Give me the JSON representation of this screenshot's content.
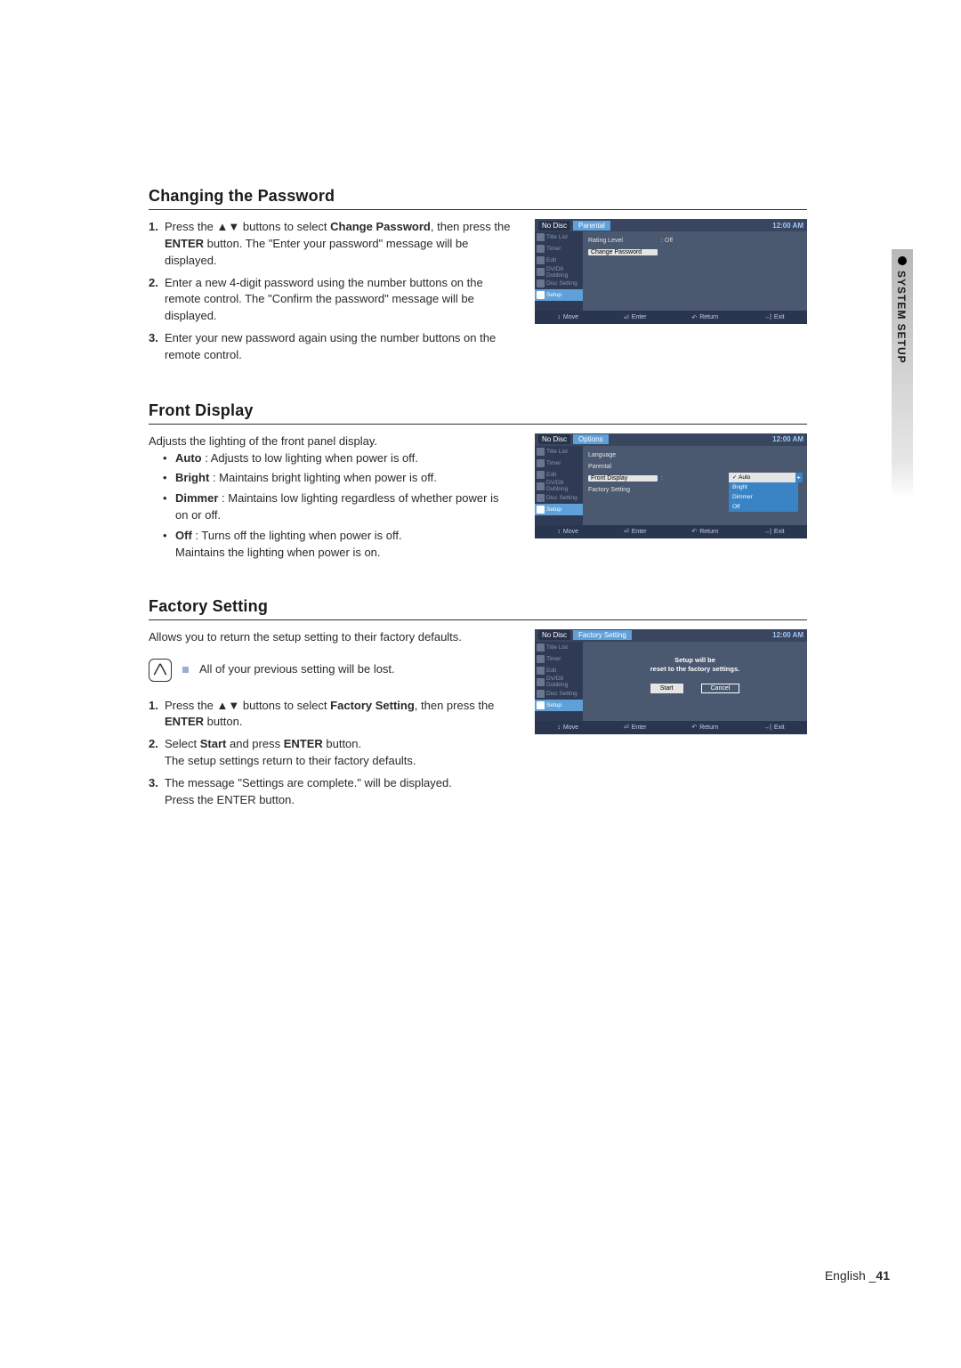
{
  "sideTab": "SYSTEM SETUP",
  "footer": {
    "lang": "English",
    "page": "41"
  },
  "sections": {
    "changePassword": {
      "title": "Changing the Password",
      "steps": [
        {
          "num": "1.",
          "pre": "Press the ",
          "arrows": "▲▼",
          "mid": " buttons to select ",
          "bold": "Change Password",
          "post": ", then press the ",
          "bold2": "ENTER",
          "tail": " button.  The \"Enter your password\" message will be displayed."
        },
        {
          "num": "2.",
          "text": "Enter a new 4-digit password using the number buttons on the remote control. The \"Confirm the password\" message will be displayed."
        },
        {
          "num": "3.",
          "text": "Enter your new password again using the number buttons on the remote control."
        }
      ]
    },
    "frontDisplay": {
      "title": "Front Display",
      "intro": "Adjusts the lighting of the front panel display.",
      "bullets": [
        {
          "bold": "Auto",
          "text": " : Adjusts to low lighting when power is off."
        },
        {
          "bold": "Bright",
          "text": " : Maintains bright lighting when power is off."
        },
        {
          "bold": "Dimmer",
          "text": " : Maintains low lighting regardless of whether power is on or off."
        },
        {
          "bold": "Off",
          "text": " : Turns off the lighting when power is off.",
          "text2": "Maintains the lighting when power is on."
        }
      ]
    },
    "factorySetting": {
      "title": "Factory Setting",
      "intro": "Allows you to return the setup setting to their factory defaults.",
      "note": "All of your previous setting will be lost.",
      "steps": [
        {
          "num": "1.",
          "pre": "Press the ",
          "arrows": "▲▼",
          "mid": " buttons to select ",
          "bold": "Factory Setting",
          "post": ", then press the ",
          "bold2": "ENTER",
          "tail": " button."
        },
        {
          "num": "2.",
          "pre": "Select ",
          "bold": "Start",
          "mid": " and press ",
          "bold2": "ENTER",
          "tail": " button.",
          "text2": "The setup settings return to their factory defaults."
        },
        {
          "num": "3.",
          "text": "The message \"Settings are complete.\" will be displayed.",
          "text2": "Press the ENTER button."
        }
      ]
    }
  },
  "screenshots": {
    "common": {
      "noDisc": "No Disc",
      "clock": "12:00 AM",
      "nav": [
        "Title List",
        "Timer",
        "Edit",
        "DV/D8 Dubbing",
        "Disc Setting",
        "Setup"
      ],
      "footer": [
        {
          "ico": "↕",
          "label": "Move"
        },
        {
          "ico": "⏎",
          "label": "Enter"
        },
        {
          "ico": "↶",
          "label": "Return"
        },
        {
          "ico": "→|",
          "label": "Exit"
        }
      ]
    },
    "parental": {
      "title": "Parental",
      "items": [
        {
          "label": "Rating Level",
          "value": ": Off"
        },
        {
          "label": "Change Password",
          "selected": true
        }
      ]
    },
    "options": {
      "title": "Options",
      "items": [
        "Language",
        "Parental",
        "Front Display",
        "Factory Setting"
      ],
      "selectedIndex": 2,
      "submenu": [
        "Auto",
        "Bright",
        "Dimmer",
        "Off"
      ],
      "submenuSelected": 0
    },
    "factory": {
      "title": "Factory Setting",
      "msgLine1": "Setup will be",
      "msgLine2": "reset to the factory settings.",
      "buttons": [
        "Start",
        "Cancel"
      ],
      "selectedBtn": 0
    }
  },
  "colors": {
    "rule": "#303030",
    "tvBg": "#4a5870",
    "tvDark": "#2f3b54",
    "tvAccent": "#5fa0d8",
    "tvSubBtn": "#3a83c4"
  }
}
